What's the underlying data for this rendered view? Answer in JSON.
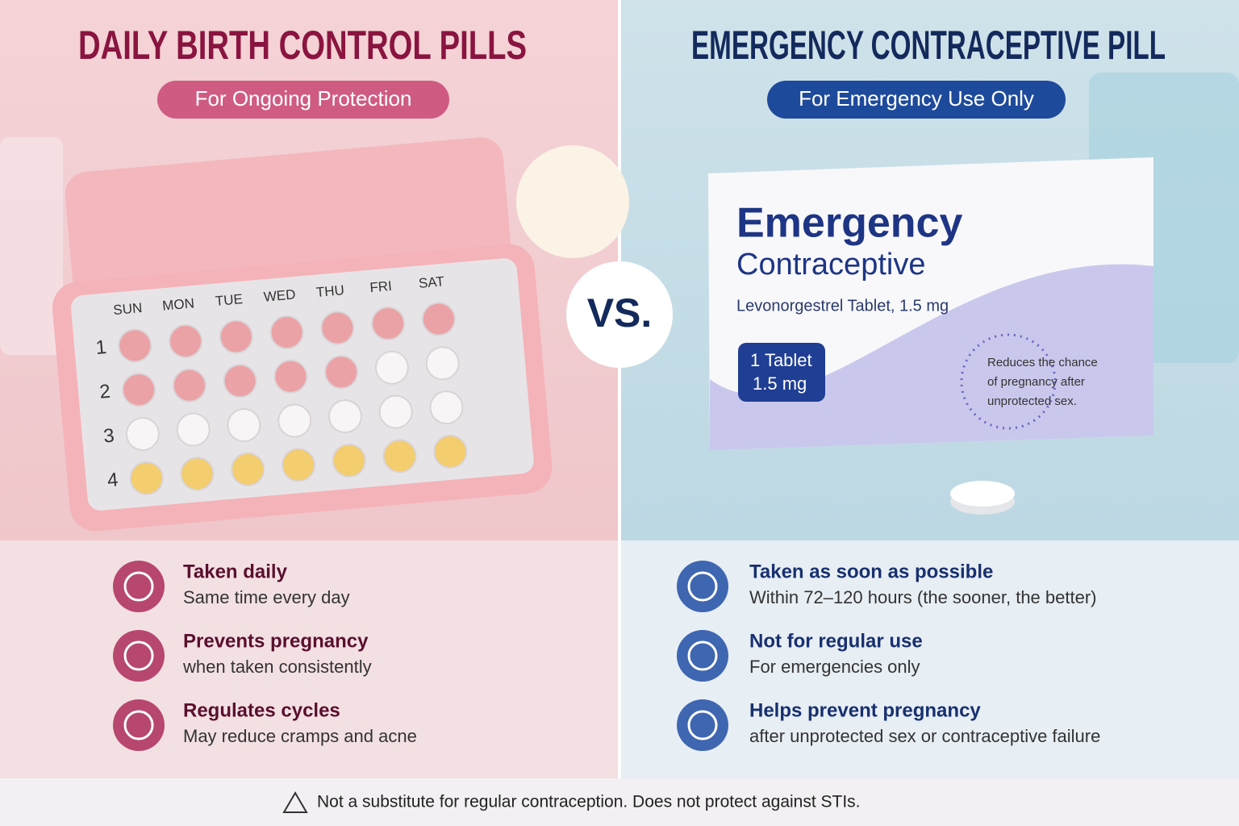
{
  "left": {
    "title": "DAILY BIRTH CONTROL PILLS",
    "badge": "For Ongoing Protection",
    "days": [
      "SUN",
      "MON",
      "TUE",
      "WED",
      "THU",
      "FRI",
      "SAT"
    ],
    "weeks": [
      "1",
      "2",
      "3",
      "4"
    ],
    "features": [
      {
        "title": "Taken daily",
        "text": "Same time every day"
      },
      {
        "title": "Prevents pregnancy",
        "text": "when taken consistently"
      },
      {
        "title": "Regulates cycles",
        "text": "May reduce cramps and acne"
      }
    ]
  },
  "vs": "VS.",
  "right": {
    "title": "EMERGENCY CONTRACEPTIVE PILL",
    "badge": "For Emergency Use Only",
    "box": {
      "brand_line1": "Emergency",
      "brand_line2": "Contraceptive",
      "subtitle": "Levonorgestrel Tablet, 1.5 mg",
      "dose_line1": "1 Tablet",
      "dose_line2": "1.5 mg",
      "note": [
        "Reduces the chance",
        "of pregnancy after",
        "unprotected sex."
      ]
    },
    "features": [
      {
        "title": "Taken as soon as possible",
        "text": "Within 72–120 hours (the sooner, the better)"
      },
      {
        "title": "Not for regular use",
        "text": "For emergencies only"
      },
      {
        "title": "Helps prevent pregnancy",
        "text": "after unprotected sex or contraceptive failure"
      }
    ]
  },
  "footer": {
    "warning": "Not a substitute for regular contraception. Does not protect against STIs."
  }
}
